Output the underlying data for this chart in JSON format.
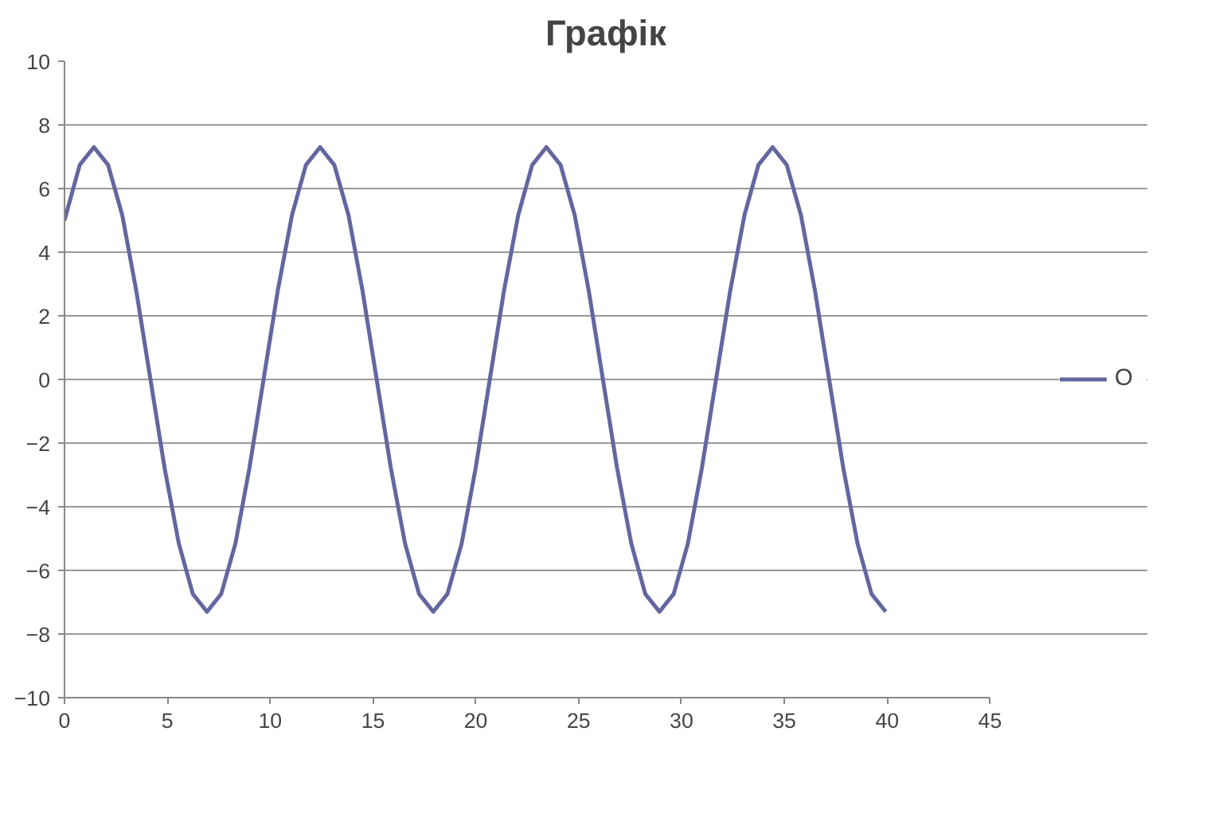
{
  "chart_data": {
    "type": "line",
    "title": "Графік",
    "x": [
      0,
      0.74,
      1.43,
      2.12,
      2.81,
      3.49,
      4.18,
      4.87,
      5.56,
      6.24,
      6.93,
      7.62,
      8.31,
      8.99,
      9.68,
      10.37,
      11.06,
      11.74,
      12.43,
      13.12,
      13.81,
      14.49,
      15.18,
      15.87,
      16.56,
      17.24,
      17.93,
      18.62,
      19.31,
      19.99,
      20.68,
      21.37,
      22.06,
      22.74,
      23.43,
      24.12,
      24.81,
      25.49,
      26.18,
      26.87,
      27.56,
      28.24,
      28.93,
      29.62,
      30.31,
      30.99,
      31.68,
      32.37,
      33.06,
      33.74,
      34.43,
      35.12,
      35.81,
      36.49,
      37.18,
      37.87,
      38.56,
      39.24,
      39.93
    ],
    "series": [
      {
        "name": "O",
        "color": "#6466a0",
        "values": [
          5,
          6.74,
          7.3,
          6.74,
          5.16,
          2.79,
          0,
          -2.79,
          -5.16,
          -6.74,
          -7.3,
          -6.74,
          -5.16,
          -2.79,
          0,
          2.79,
          5.16,
          6.74,
          7.3,
          6.74,
          5.16,
          2.79,
          0,
          -2.79,
          -5.16,
          -6.74,
          -7.3,
          -6.74,
          -5.16,
          -2.79,
          0,
          2.79,
          5.16,
          6.74,
          7.3,
          6.74,
          5.16,
          2.79,
          0,
          -2.79,
          -5.16,
          -6.74,
          -7.3,
          -6.74,
          -5.16,
          -2.79,
          0,
          2.79,
          5.16,
          6.74,
          7.3,
          6.74,
          5.16,
          2.79,
          0,
          -2.79,
          -5.16,
          -6.74,
          -7.3
        ]
      }
    ],
    "xlim": [
      0,
      45
    ],
    "xticks": [
      0,
      5,
      10,
      15,
      20,
      25,
      30,
      35,
      40,
      45
    ],
    "ylim": [
      -10,
      10
    ],
    "yticks": [
      -10,
      -8,
      -6,
      -4,
      -2,
      0,
      2,
      4,
      6,
      8,
      10
    ],
    "grid": "y",
    "legend": "right",
    "marker": "none",
    "line_style": "solid"
  }
}
